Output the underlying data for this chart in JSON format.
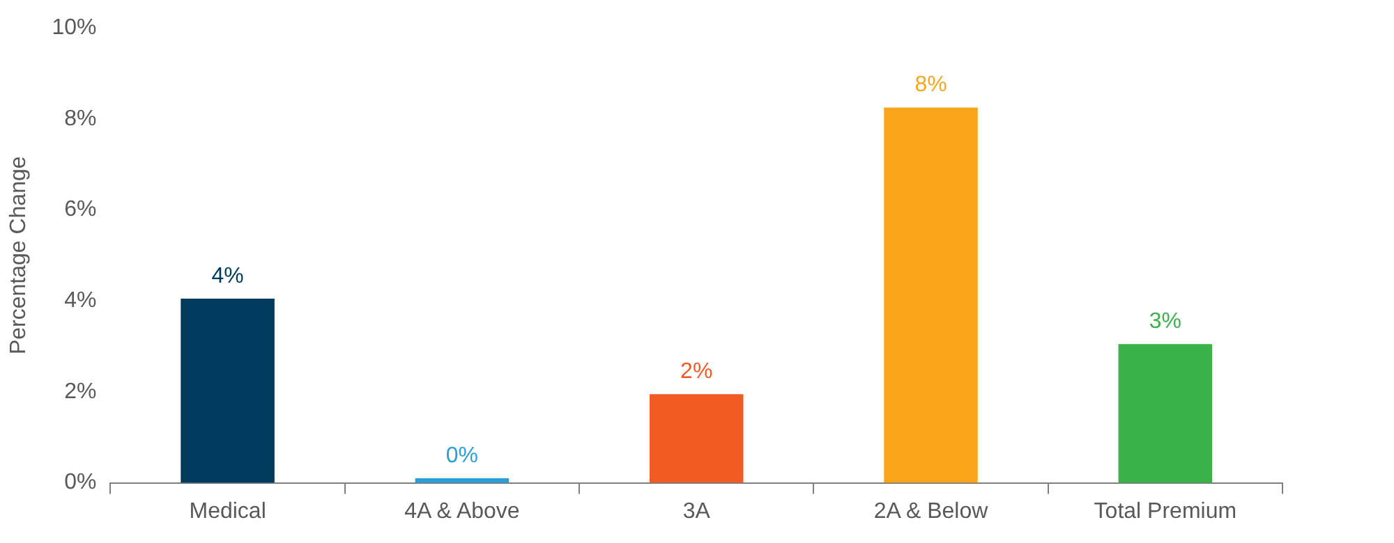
{
  "chart_data": {
    "type": "bar",
    "ylabel": "Percentage Change",
    "categories": [
      "Medical",
      "4A & Above",
      "3A",
      "2A & Below",
      "Total Premium"
    ],
    "values": [
      4.05,
      0.1,
      1.95,
      8.25,
      3.05
    ],
    "colors": [
      "#003a5d",
      "#2a9fd8",
      "#f15a22",
      "#f9a51b",
      "#3bb149"
    ],
    "value_labels": [
      "4%",
      "0%",
      "2%",
      "8%",
      "3%"
    ],
    "ylim": [
      0,
      10
    ],
    "yticks": [
      {
        "value": 0,
        "label": "0%"
      },
      {
        "value": 2,
        "label": "2%"
      },
      {
        "value": 4,
        "label": "4%"
      },
      {
        "value": 6,
        "label": "6%"
      },
      {
        "value": 8,
        "label": "8%"
      },
      {
        "value": 10,
        "label": "10%"
      }
    ],
    "grid": false,
    "legend": false
  }
}
